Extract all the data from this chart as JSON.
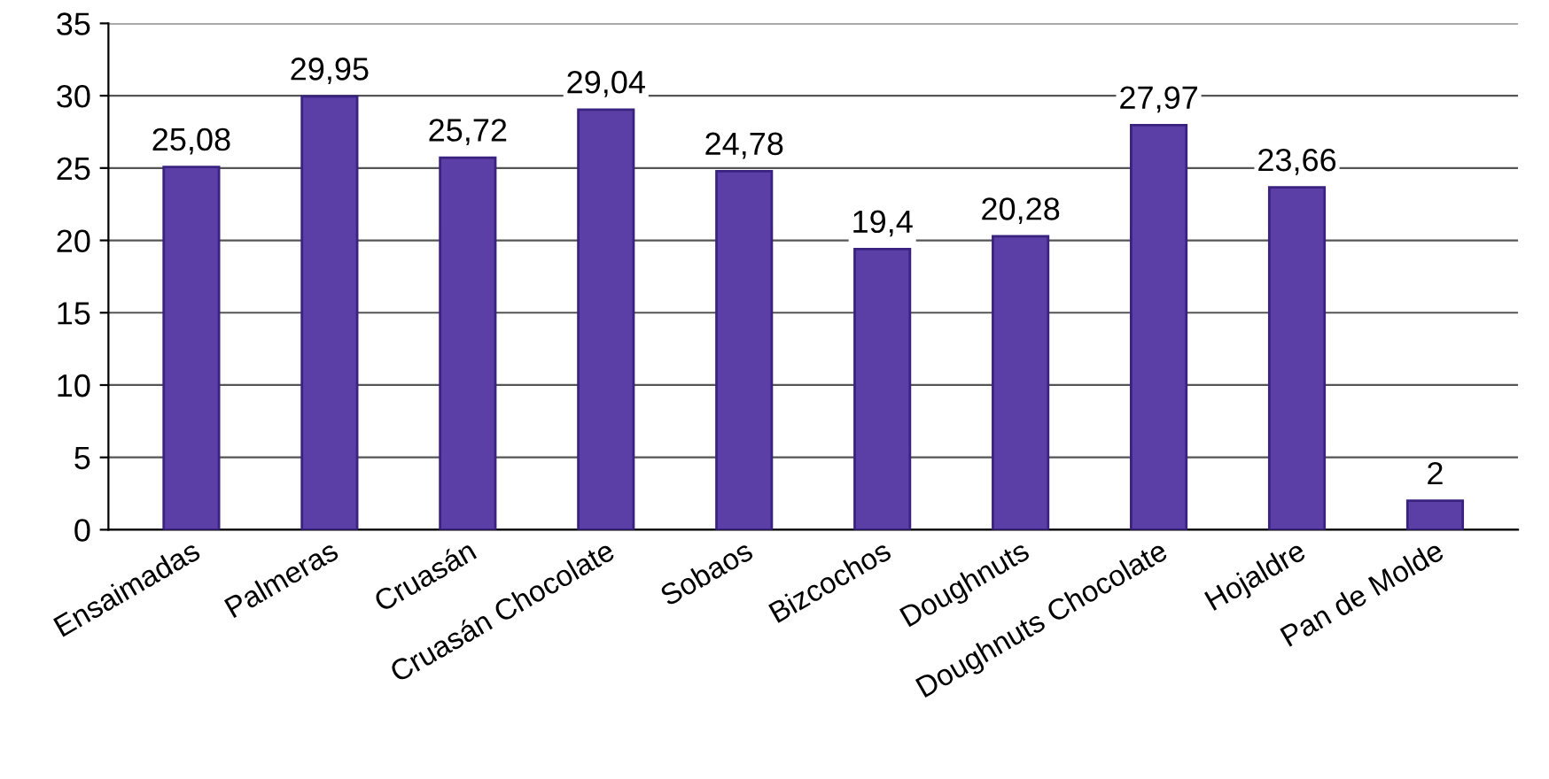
{
  "chart_data": {
    "type": "bar",
    "categories": [
      "Ensaimadas",
      "Palmeras",
      "Cruasán",
      "Cruasán Chocolate",
      "Sobaos",
      "Bizcochos",
      "Doughnuts",
      "Doughnuts Chocolate",
      "Hojaldre",
      "Pan de Molde"
    ],
    "values": [
      25.08,
      29.95,
      25.72,
      29.04,
      24.78,
      19.4,
      20.28,
      27.97,
      23.66,
      2
    ],
    "value_labels": [
      "25,08",
      "29,95",
      "25,72",
      "29,04",
      "24,78",
      "19,4",
      "20,28",
      "27,97",
      "23,66",
      "2"
    ],
    "color": "#5b3fa6",
    "ylim": [
      0,
      35
    ],
    "yticks": [
      0,
      5,
      10,
      15,
      20,
      25,
      30,
      35
    ],
    "grid": "y"
  }
}
